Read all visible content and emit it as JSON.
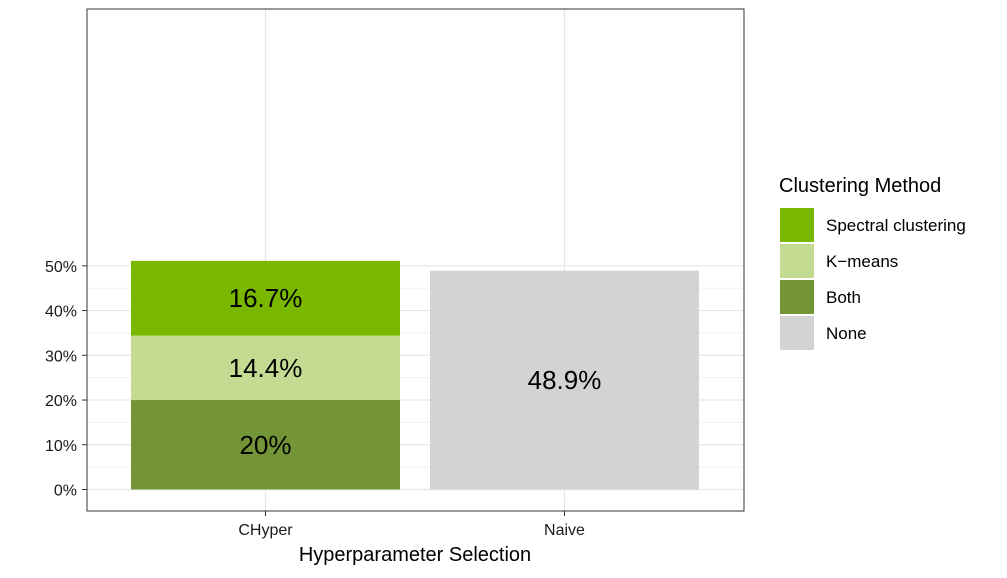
{
  "chart_data": {
    "type": "bar",
    "stacked": true,
    "categories": [
      "CHyper",
      "Naive"
    ],
    "series": [
      {
        "name": "Both",
        "values": [
          20.0,
          0
        ],
        "color": "#739537",
        "labels": [
          "20%",
          ""
        ]
      },
      {
        "name": "K−means",
        "values": [
          14.4,
          0
        ],
        "color": "#c4db92",
        "labels": [
          "14.4%",
          ""
        ]
      },
      {
        "name": "Spectral clustering",
        "values": [
          16.7,
          0
        ],
        "color": "#7ab800",
        "labels": [
          "16.7%",
          ""
        ]
      },
      {
        "name": "None",
        "values": [
          0,
          48.9
        ],
        "color": "#d3d3d3",
        "labels": [
          "",
          "48.9%"
        ]
      }
    ],
    "xlabel": "Hyperparameter Selection",
    "ylabel": "",
    "ylim": [
      0,
      52.5
    ],
    "yticks": [
      0,
      10,
      20,
      30,
      40,
      50
    ],
    "ytick_labels": [
      "0%",
      "10%",
      "20%",
      "30%",
      "40%",
      "50%"
    ],
    "grid": true,
    "legend": {
      "title": "Clustering Method",
      "position": "right",
      "order": [
        "Spectral clustering",
        "K−means",
        "Both",
        "None"
      ]
    }
  }
}
